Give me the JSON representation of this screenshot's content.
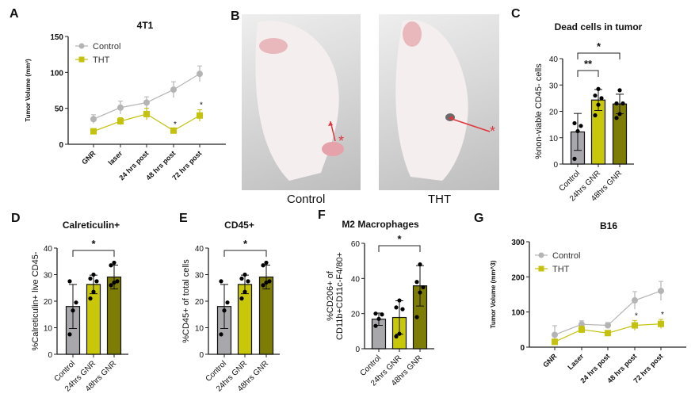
{
  "panel_letters": {
    "A": "A",
    "B": "B",
    "C": "C",
    "D": "D",
    "E": "E",
    "F": "F",
    "G": "G"
  },
  "photos": {
    "left_caption": "Control",
    "right_caption": "THT",
    "marker": "*"
  },
  "colors": {
    "control_line": "#b4b4b4",
    "tht_line": "#c4c20c",
    "bar_control": "#a7a7ac",
    "bar_24": "#c9c70a",
    "bar_48": "#7d7c05",
    "axis": "#222222",
    "arrow": "#e0353b"
  },
  "chart_data": [
    {
      "id": "A",
      "type": "line",
      "title": "4T1",
      "xlabel": "",
      "ylabel": "Tumor Volume (mm³)",
      "ylim": [
        0,
        150
      ],
      "yticks": [
        0,
        50,
        100,
        150
      ],
      "categories": [
        "GNR",
        "laser",
        "24 hrs post",
        "48 hrs post",
        "72 hrs post"
      ],
      "legend": "top-left",
      "series": [
        {
          "name": "Control",
          "marker": "circle",
          "values": [
            35,
            51,
            58,
            76,
            98
          ],
          "errors": [
            6,
            9,
            8,
            11,
            11
          ]
        },
        {
          "name": "THT",
          "marker": "square",
          "values": [
            18,
            32,
            42,
            19,
            40
          ],
          "errors": [
            3,
            5,
            8,
            2,
            8
          ]
        }
      ],
      "annotations": [
        {
          "category": "48 hrs post",
          "text": "*"
        },
        {
          "category": "72 hrs post",
          "text": "*"
        }
      ]
    },
    {
      "id": "C",
      "type": "bar",
      "title": "Dead cells in tumor",
      "ylabel": "%non-viable CD45- cells",
      "ylim": [
        0,
        40
      ],
      "yticks": [
        0,
        10,
        20,
        30,
        40
      ],
      "categories": [
        "Control",
        "24hrs GNR",
        "48hrs GNR"
      ],
      "values": [
        12.2,
        24.3,
        22.8
      ],
      "errors": [
        7,
        4,
        3.7
      ],
      "points": [
        [
          2,
          12.5,
          14.5,
          15.5
        ],
        [
          18.5,
          22.5,
          25,
          26,
          28.5
        ],
        [
          17.5,
          19,
          23,
          23,
          28
        ]
      ],
      "significance": [
        {
          "from": 0,
          "to": 1,
          "text": "**"
        },
        {
          "from": 0,
          "to": 2,
          "text": "*"
        }
      ]
    },
    {
      "id": "D",
      "type": "bar",
      "title": "Calreticulin+",
      "ylabel": "%Calreticulin+ live CD45-",
      "ylim": [
        0,
        40
      ],
      "yticks": [
        0,
        10,
        20,
        30,
        40
      ],
      "categories": [
        "Control",
        "24hrs GNR",
        "48hrs GNR"
      ],
      "values": [
        18,
        26.3,
        29.1
      ],
      "errors": [
        8.3,
        3.5,
        4.5
      ],
      "points": [
        [
          7.5,
          16.5,
          19.5,
          27.5
        ],
        [
          21,
          23.5,
          27.5,
          28.5,
          30
        ],
        [
          26,
          27,
          27.5,
          33.5,
          34.5
        ]
      ],
      "significance": [
        {
          "from": 0,
          "to": 2,
          "text": "*"
        }
      ]
    },
    {
      "id": "E",
      "type": "bar",
      "title": "CD45+",
      "ylabel": "%CD45+ of total cells",
      "ylim": [
        0,
        40
      ],
      "yticks": [
        0,
        10,
        20,
        30,
        40
      ],
      "categories": [
        "Control",
        "24hrs GNR",
        "48hrs GNR"
      ],
      "values": [
        18,
        26.3,
        29.1
      ],
      "errors": [
        8.3,
        3.5,
        4.5
      ],
      "points": [
        [
          7.5,
          16.5,
          19.5,
          27.5
        ],
        [
          21,
          23.5,
          27.5,
          28.5,
          30
        ],
        [
          26,
          27,
          27.5,
          33.5,
          34.5
        ]
      ],
      "significance": [
        {
          "from": 0,
          "to": 2,
          "text": "*"
        }
      ]
    },
    {
      "id": "F",
      "type": "bar",
      "title": "M2 Macrophages",
      "ylabel": "%CD206+ of",
      "ylabel2": "CD11b+CD11c-F4/80+",
      "ylim": [
        0,
        60
      ],
      "yticks": [
        0,
        20,
        40,
        60
      ],
      "categories": [
        "Control",
        "24hrs GNR",
        "48hrs GNR"
      ],
      "values": [
        16.8,
        17.8,
        35.8
      ],
      "errors": [
        3.5,
        9.5,
        11.5
      ],
      "points": [
        [
          13,
          17,
          19.5,
          20
        ],
        [
          7,
          8.5,
          22.5,
          23.5,
          27.5
        ],
        [
          18,
          32,
          35,
          38,
          48
        ]
      ],
      "significance": [
        {
          "from": 0,
          "to": 2,
          "text": "*"
        }
      ]
    },
    {
      "id": "G",
      "type": "line",
      "title": "B16",
      "xlabel": "",
      "ylabel": "Tumor Volume (mm^3)",
      "ylim": [
        0,
        300
      ],
      "yticks": [
        0,
        100,
        200,
        300
      ],
      "categories": [
        "GNR",
        "Laser",
        "24 hrs post",
        "48 hrs post",
        "72 hrs post"
      ],
      "legend": "top-left",
      "series": [
        {
          "name": "Control",
          "marker": "circle",
          "values": [
            35,
            65,
            62,
            133,
            160
          ],
          "errors": [
            26,
            10,
            8,
            25,
            27
          ]
        },
        {
          "name": "THT",
          "marker": "square",
          "values": [
            15,
            50,
            40,
            62,
            66
          ],
          "errors": [
            8,
            10,
            6,
            14,
            13
          ]
        }
      ],
      "annotations": [
        {
          "category": "48 hrs post",
          "text": "*"
        },
        {
          "category": "72 hrs post",
          "text": "*"
        }
      ]
    }
  ]
}
